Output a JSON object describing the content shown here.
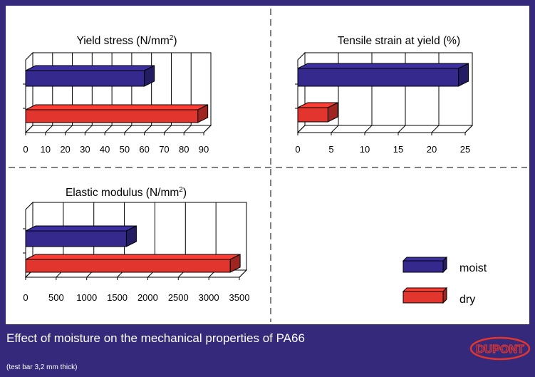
{
  "chart_data": [
    {
      "type": "bar",
      "title": "Yield stress (N/mm",
      "title_sup": "2",
      "title_close": ")",
      "series": [
        {
          "name": "moist",
          "values": [
            60
          ]
        },
        {
          "name": "dry",
          "values": [
            87
          ]
        }
      ],
      "xlim": [
        0,
        90
      ],
      "ticks": [
        "0",
        "10",
        "20",
        "30",
        "40",
        "50",
        "60",
        "70",
        "80",
        "90"
      ]
    },
    {
      "type": "bar",
      "title": "Tensile strain at yield (%)",
      "series": [
        {
          "name": "moist",
          "values": [
            24
          ]
        },
        {
          "name": "dry",
          "values": [
            4.5
          ]
        }
      ],
      "xlim": [
        0,
        25
      ],
      "ticks": [
        "0",
        "5",
        "10",
        "15",
        "20",
        "25"
      ]
    },
    {
      "type": "bar",
      "title": "Elastic modulus (N/mm",
      "title_sup": "2",
      "title_close": ")",
      "series": [
        {
          "name": "moist",
          "values": [
            1650
          ]
        },
        {
          "name": "dry",
          "values": [
            3350
          ]
        }
      ],
      "xlim": [
        0,
        3500
      ],
      "ticks": [
        "0",
        "500",
        "1000",
        "1500",
        "2000",
        "2500",
        "3000",
        "3500"
      ]
    }
  ],
  "legend": [
    {
      "label": "moist",
      "color": "#35298d"
    },
    {
      "label": "dry",
      "color": "#e2352e"
    }
  ],
  "colors": {
    "moist": "#35298d",
    "dry": "#e2352e",
    "background": "#34297a"
  },
  "footer": {
    "title": "Effect of moisture on the mechanical properties of PA66",
    "subtitle": "(test bar 3,2 mm thick)"
  },
  "logo": {
    "text": "DUPONT"
  }
}
